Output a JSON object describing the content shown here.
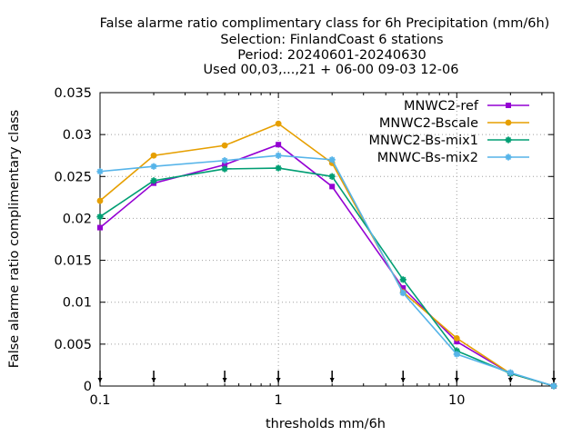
{
  "chart_data": {
    "type": "line",
    "title_lines": [
      "False alarme ratio complimentary class  for 6h Precipitation (mm/6h)",
      "Selection: FinlandCoast      6 stations",
      "Period: 20240601-20240630",
      "Used 00,03,...,21 + 06-00 09-03 12-06"
    ],
    "xlabel": "thresholds mm/6h",
    "ylabel": "False alarme ratio complimentary class",
    "x_scale": "log",
    "xlim": [
      0.1,
      35
    ],
    "ylim": [
      0,
      0.035
    ],
    "x_ticks": [
      0.1,
      1,
      10
    ],
    "x_tick_labels": [
      "0.1",
      "1",
      "10"
    ],
    "y_ticks": [
      0,
      0.005,
      0.01,
      0.015,
      0.02,
      0.025,
      0.03,
      0.035
    ],
    "y_tick_labels": [
      "0",
      "0.005",
      "0.01",
      "0.015",
      "0.02",
      "0.025",
      "0.03",
      "0.035"
    ],
    "grid": true,
    "legend_position": "top-right",
    "threshold_markers": [
      0.1,
      0.2,
      0.5,
      1,
      2,
      5,
      10,
      20,
      35
    ],
    "x": [
      0.1,
      0.2,
      0.5,
      1,
      2,
      5,
      10,
      20,
      35
    ],
    "series": [
      {
        "name": "MNWC2-ref",
        "color": "#9400d3",
        "marker": "square",
        "values": [
          0.0189,
          0.0242,
          0.0264,
          0.0288,
          0.0238,
          0.0117,
          0.0053,
          0.0015,
          0.0
        ]
      },
      {
        "name": "MNWC2-Bscale",
        "color": "#e69f00",
        "marker": "circle",
        "values": [
          0.0221,
          0.0275,
          0.0287,
          0.0313,
          0.0266,
          0.0112,
          0.0057,
          0.0015,
          0.0
        ]
      },
      {
        "name": "MNWC2-Bs-mix1",
        "color": "#009e73",
        "marker": "star",
        "values": [
          0.0202,
          0.0245,
          0.0259,
          0.026,
          0.025,
          0.0127,
          0.0042,
          0.0015,
          0.0
        ]
      },
      {
        "name": "MNWC-Bs-mix2",
        "color": "#56b4e9",
        "marker": "star",
        "values": [
          0.0256,
          0.0262,
          0.0269,
          0.0275,
          0.027,
          0.0111,
          0.0038,
          0.0016,
          0.0
        ]
      }
    ]
  }
}
